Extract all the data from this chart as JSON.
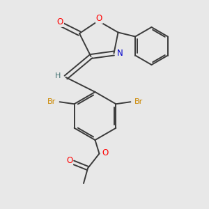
{
  "background_color": "#e8e8e8",
  "bond_color": "#3a3a3a",
  "atom_colors": {
    "O": "#ff0000",
    "N": "#0000cc",
    "Br": "#cc8800",
    "H": "#407070",
    "C": "#3a3a3a"
  },
  "figsize": [
    3.0,
    3.0
  ],
  "dpi": 100,
  "xlim": [
    0,
    10
  ],
  "ylim": [
    0,
    10
  ]
}
